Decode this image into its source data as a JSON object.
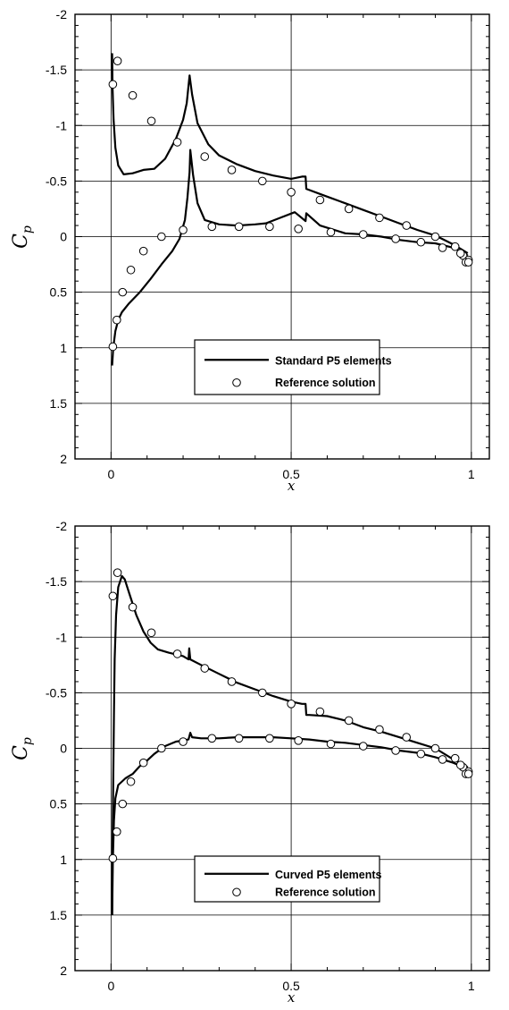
{
  "chart_data": [
    {
      "type": "line",
      "xlabel": "x",
      "ylabel_main": "C",
      "ylabel_sub": "p",
      "xlim": [
        -0.1,
        1.05
      ],
      "ylim": [
        -2,
        2
      ],
      "y_inverted": true,
      "x_ticks": [
        {
          "v": 0,
          "label": "0"
        },
        {
          "v": 0.5,
          "label": "0.5"
        },
        {
          "v": 1,
          "label": "1"
        }
      ],
      "y_ticks": [
        {
          "v": -2,
          "label": "-2"
        },
        {
          "v": -1.5,
          "label": "-1.5"
        },
        {
          "v": -1,
          "label": "-1"
        },
        {
          "v": -0.5,
          "label": "-0.5"
        },
        {
          "v": 0,
          "label": "0"
        },
        {
          "v": 0.5,
          "label": "0.5"
        },
        {
          "v": 1,
          "label": "1"
        },
        {
          "v": 1.5,
          "label": "1.5"
        },
        {
          "v": 2,
          "label": "2"
        }
      ],
      "grid": true,
      "legend_position": "lower-center",
      "series": [
        {
          "name": "Standard P5 elements",
          "style": "line",
          "color": "#000000",
          "segments": [
            [
              [
                0.003,
                -1.65
              ],
              [
                0.004,
                -1.35
              ],
              [
                0.007,
                -1.05
              ],
              [
                0.012,
                -0.8
              ],
              [
                0.02,
                -0.64
              ],
              [
                0.035,
                -0.56
              ],
              [
                0.06,
                -0.57
              ],
              [
                0.09,
                -0.6
              ],
              [
                0.12,
                -0.61
              ],
              [
                0.15,
                -0.7
              ],
              [
                0.18,
                -0.88
              ],
              [
                0.2,
                -1.05
              ],
              [
                0.21,
                -1.2
              ],
              [
                0.218,
                -1.45
              ],
              [
                0.225,
                -1.28
              ],
              [
                0.24,
                -1.02
              ],
              [
                0.27,
                -0.83
              ],
              [
                0.3,
                -0.73
              ],
              [
                0.35,
                -0.65
              ],
              [
                0.4,
                -0.59
              ],
              [
                0.45,
                -0.55
              ],
              [
                0.5,
                -0.52
              ],
              [
                0.53,
                -0.54
              ],
              [
                0.54,
                -0.54
              ],
              [
                0.542,
                -0.43
              ],
              [
                0.6,
                -0.36
              ],
              [
                0.65,
                -0.3
              ],
              [
                0.7,
                -0.24
              ],
              [
                0.75,
                -0.18
              ],
              [
                0.8,
                -0.12
              ],
              [
                0.85,
                -0.06
              ],
              [
                0.9,
                -0.01
              ],
              [
                0.95,
                0.07
              ],
              [
                0.99,
                0.15
              ]
            ],
            [
              [
                0.003,
                1.16
              ],
              [
                0.006,
                1.0
              ],
              [
                0.012,
                0.85
              ],
              [
                0.02,
                0.75
              ],
              [
                0.03,
                0.68
              ],
              [
                0.05,
                0.6
              ],
              [
                0.08,
                0.5
              ],
              [
                0.11,
                0.38
              ],
              [
                0.14,
                0.25
              ],
              [
                0.17,
                0.13
              ],
              [
                0.19,
                0.02
              ],
              [
                0.205,
                -0.15
              ],
              [
                0.212,
                -0.35
              ],
              [
                0.218,
                -0.58
              ],
              [
                0.22,
                -0.78
              ],
              [
                0.228,
                -0.55
              ],
              [
                0.24,
                -0.3
              ],
              [
                0.26,
                -0.15
              ],
              [
                0.3,
                -0.11
              ],
              [
                0.35,
                -0.1
              ],
              [
                0.4,
                -0.11
              ],
              [
                0.43,
                -0.12
              ],
              [
                0.47,
                -0.17
              ],
              [
                0.51,
                -0.22
              ],
              [
                0.54,
                -0.14
              ],
              [
                0.542,
                -0.21
              ],
              [
                0.58,
                -0.1
              ],
              [
                0.65,
                -0.03
              ],
              [
                0.7,
                -0.02
              ],
              [
                0.75,
                0.0
              ],
              [
                0.8,
                0.03
              ],
              [
                0.85,
                0.05
              ],
              [
                0.9,
                0.06
              ],
              [
                0.95,
                0.1
              ],
              [
                0.99,
                0.17
              ]
            ]
          ]
        },
        {
          "name": "Reference solution",
          "style": "open-circle",
          "points": [
            [
              0.005,
              -1.37
            ],
            [
              0.018,
              -1.58
            ],
            [
              0.06,
              -1.27
            ],
            [
              0.112,
              -1.04
            ],
            [
              0.184,
              -0.85
            ],
            [
              0.26,
              -0.72
            ],
            [
              0.335,
              -0.6
            ],
            [
              0.42,
              -0.5
            ],
            [
              0.5,
              -0.4
            ],
            [
              0.58,
              -0.33
            ],
            [
              0.66,
              -0.25
            ],
            [
              0.745,
              -0.17
            ],
            [
              0.82,
              -0.1
            ],
            [
              0.9,
              0.0
            ],
            [
              0.955,
              0.09
            ],
            [
              0.977,
              0.17
            ],
            [
              0.992,
              0.21
            ],
            [
              0.005,
              0.99
            ],
            [
              0.016,
              0.75
            ],
            [
              0.032,
              0.5
            ],
            [
              0.055,
              0.3
            ],
            [
              0.09,
              0.13
            ],
            [
              0.14,
              0.0
            ],
            [
              0.2,
              -0.06
            ],
            [
              0.28,
              -0.09
            ],
            [
              0.355,
              -0.09
            ],
            [
              0.44,
              -0.09
            ],
            [
              0.52,
              -0.07
            ],
            [
              0.61,
              -0.04
            ],
            [
              0.7,
              -0.02
            ],
            [
              0.79,
              0.02
            ],
            [
              0.86,
              0.05
            ],
            [
              0.92,
              0.1
            ],
            [
              0.97,
              0.15
            ],
            [
              0.985,
              0.23
            ],
            [
              0.992,
              0.23
            ]
          ]
        }
      ]
    },
    {
      "type": "line",
      "xlabel": "x",
      "ylabel_main": "C",
      "ylabel_sub": "p",
      "xlim": [
        -0.1,
        1.05
      ],
      "ylim": [
        -2,
        2
      ],
      "y_inverted": true,
      "x_ticks": [
        {
          "v": 0,
          "label": "0"
        },
        {
          "v": 0.5,
          "label": "0.5"
        },
        {
          "v": 1,
          "label": "1"
        }
      ],
      "y_ticks": [
        {
          "v": -2,
          "label": "-2"
        },
        {
          "v": -1.5,
          "label": "-1.5"
        },
        {
          "v": -1,
          "label": "-1"
        },
        {
          "v": -0.5,
          "label": "-0.5"
        },
        {
          "v": 0,
          "label": "0"
        },
        {
          "v": 0.5,
          "label": "0.5"
        },
        {
          "v": 1,
          "label": "1"
        },
        {
          "v": 1.5,
          "label": "1.5"
        },
        {
          "v": 2,
          "label": "2"
        }
      ],
      "grid": true,
      "legend_position": "lower-center",
      "series": [
        {
          "name": "Curved P5 elements",
          "style": "line",
          "color": "#000000",
          "segments": [
            [
              [
                0.003,
                1.5
              ],
              [
                0.004,
                0.9
              ],
              [
                0.006,
                0.3
              ],
              [
                0.008,
                -0.3
              ],
              [
                0.01,
                -0.8
              ],
              [
                0.014,
                -1.2
              ],
              [
                0.02,
                -1.45
              ],
              [
                0.03,
                -1.55
              ],
              [
                0.038,
                -1.52
              ],
              [
                0.05,
                -1.4
              ],
              [
                0.07,
                -1.2
              ],
              [
                0.09,
                -1.05
              ],
              [
                0.11,
                -0.95
              ],
              [
                0.13,
                -0.89
              ],
              [
                0.16,
                -0.86
              ],
              [
                0.2,
                -0.83
              ],
              [
                0.215,
                -0.8
              ],
              [
                0.217,
                -0.9
              ],
              [
                0.22,
                -0.8
              ],
              [
                0.25,
                -0.75
              ],
              [
                0.3,
                -0.67
              ],
              [
                0.35,
                -0.59
              ],
              [
                0.4,
                -0.53
              ],
              [
                0.45,
                -0.47
              ],
              [
                0.5,
                -0.42
              ],
              [
                0.53,
                -0.4
              ],
              [
                0.54,
                -0.4
              ],
              [
                0.542,
                -0.3
              ],
              [
                0.55,
                -0.3
              ],
              [
                0.6,
                -0.29
              ],
              [
                0.65,
                -0.25
              ],
              [
                0.7,
                -0.19
              ],
              [
                0.75,
                -0.15
              ],
              [
                0.8,
                -0.1
              ],
              [
                0.85,
                -0.05
              ],
              [
                0.9,
                0.0
              ],
              [
                0.95,
                0.1
              ],
              [
                0.99,
                0.17
              ]
            ],
            [
              [
                0.003,
                1.5
              ],
              [
                0.005,
                1.0
              ],
              [
                0.008,
                0.65
              ],
              [
                0.012,
                0.45
              ],
              [
                0.02,
                0.33
              ],
              [
                0.04,
                0.27
              ],
              [
                0.06,
                0.23
              ],
              [
                0.08,
                0.16
              ],
              [
                0.1,
                0.11
              ],
              [
                0.12,
                0.05
              ],
              [
                0.15,
                -0.02
              ],
              [
                0.18,
                -0.06
              ],
              [
                0.2,
                -0.07
              ],
              [
                0.215,
                -0.08
              ],
              [
                0.22,
                -0.14
              ],
              [
                0.225,
                -0.1
              ],
              [
                0.25,
                -0.09
              ],
              [
                0.3,
                -0.09
              ],
              [
                0.35,
                -0.1
              ],
              [
                0.4,
                -0.1
              ],
              [
                0.45,
                -0.1
              ],
              [
                0.5,
                -0.09
              ],
              [
                0.55,
                -0.08
              ],
              [
                0.6,
                -0.06
              ],
              [
                0.65,
                -0.05
              ],
              [
                0.7,
                -0.03
              ],
              [
                0.75,
                -0.01
              ],
              [
                0.8,
                0.02
              ],
              [
                0.85,
                0.04
              ],
              [
                0.9,
                0.08
              ],
              [
                0.95,
                0.13
              ],
              [
                0.99,
                0.19
              ]
            ]
          ]
        },
        {
          "name": "Reference solution",
          "style": "open-circle",
          "points": [
            [
              0.005,
              -1.37
            ],
            [
              0.018,
              -1.58
            ],
            [
              0.06,
              -1.27
            ],
            [
              0.112,
              -1.04
            ],
            [
              0.184,
              -0.85
            ],
            [
              0.26,
              -0.72
            ],
            [
              0.335,
              -0.6
            ],
            [
              0.42,
              -0.5
            ],
            [
              0.5,
              -0.4
            ],
            [
              0.58,
              -0.33
            ],
            [
              0.66,
              -0.25
            ],
            [
              0.745,
              -0.17
            ],
            [
              0.82,
              -0.1
            ],
            [
              0.9,
              0.0
            ],
            [
              0.955,
              0.09
            ],
            [
              0.977,
              0.17
            ],
            [
              0.992,
              0.21
            ],
            [
              0.005,
              0.99
            ],
            [
              0.016,
              0.75
            ],
            [
              0.032,
              0.5
            ],
            [
              0.055,
              0.3
            ],
            [
              0.09,
              0.13
            ],
            [
              0.14,
              0.0
            ],
            [
              0.2,
              -0.06
            ],
            [
              0.28,
              -0.09
            ],
            [
              0.355,
              -0.09
            ],
            [
              0.44,
              -0.09
            ],
            [
              0.52,
              -0.07
            ],
            [
              0.61,
              -0.04
            ],
            [
              0.7,
              -0.02
            ],
            [
              0.79,
              0.02
            ],
            [
              0.86,
              0.05
            ],
            [
              0.92,
              0.1
            ],
            [
              0.97,
              0.15
            ],
            [
              0.985,
              0.23
            ],
            [
              0.992,
              0.23
            ]
          ]
        }
      ]
    }
  ]
}
